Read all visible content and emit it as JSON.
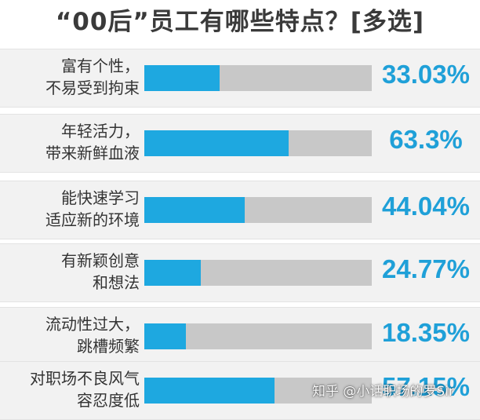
{
  "chart_data": {
    "type": "bar",
    "orientation": "horizontal",
    "title": "“00后”员工有哪些特点？[多选]",
    "categories": [
      [
        "富有个性，",
        "不易受到拘束"
      ],
      [
        "年轻活力，",
        "带来新鲜血液"
      ],
      [
        "能快速学习",
        "适应新的环境"
      ],
      [
        "有新颖创意",
        "和想法"
      ],
      [
        "流动性过大，",
        "跳槽频繁"
      ],
      [
        "对职场不良风气",
        "容忍度低"
      ]
    ],
    "values": [
      33.03,
      63.3,
      44.04,
      24.77,
      18.35,
      57.15
    ],
    "value_labels": [
      "33.03%",
      "63.3%",
      "44.04%",
      "24.77%",
      "18.35%",
      "57.15%"
    ],
    "xlim": [
      0,
      100
    ],
    "grid": false,
    "legend": "none",
    "colors": {
      "bar": "#1ea8e0",
      "track": "#c8c8c8",
      "value_text": "#1fa0d8"
    }
  },
  "watermark": "知乎 @小话职场的罗Sir"
}
